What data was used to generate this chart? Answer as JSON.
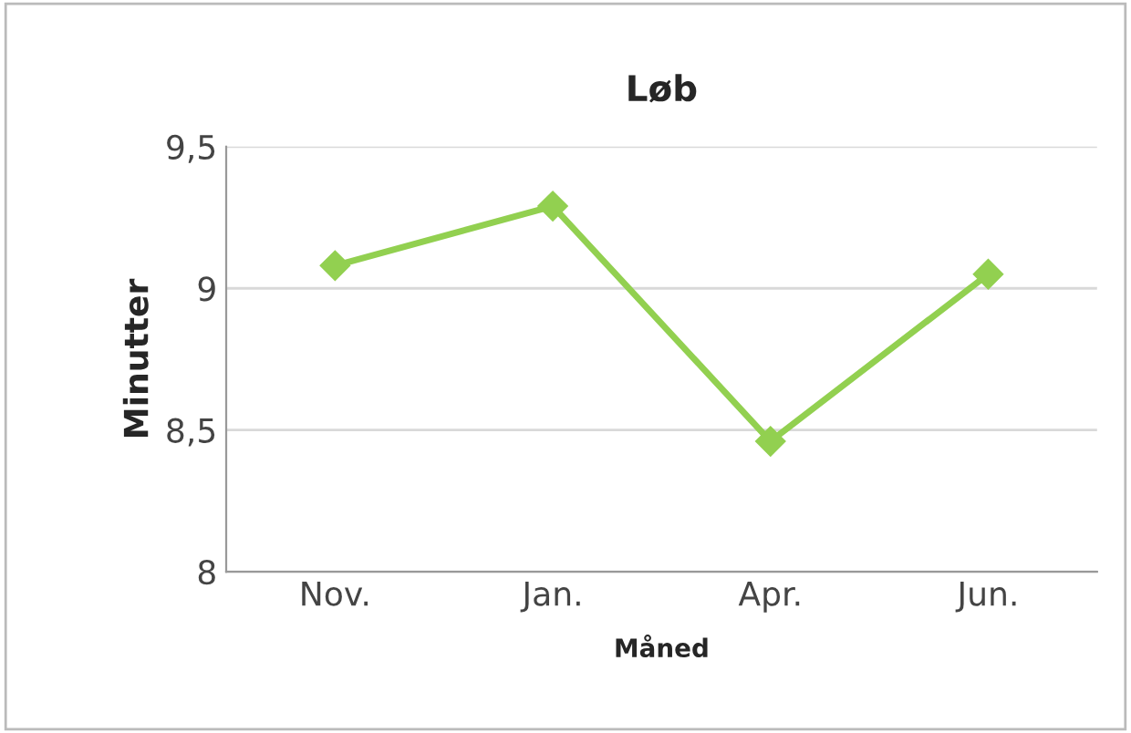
{
  "chart_data": {
    "type": "line",
    "title": "Løb",
    "xlabel": "Måned",
    "ylabel": "Minutter",
    "categories": [
      "Nov.",
      "Jan.",
      "Apr.",
      "Jun."
    ],
    "series": [
      {
        "color": "#92d050",
        "values": [
          9.08,
          9.29,
          8.46,
          9.05
        ]
      }
    ],
    "ylim": [
      8,
      9.5
    ],
    "yticks": [
      {
        "value": 8,
        "label": "8"
      },
      {
        "value": 8.5,
        "label": "8,5"
      },
      {
        "value": 9,
        "label": "9"
      },
      {
        "value": 9.5,
        "label": "9,5"
      }
    ],
    "grid": "y",
    "marker": "diamond",
    "line_style": "solid"
  }
}
